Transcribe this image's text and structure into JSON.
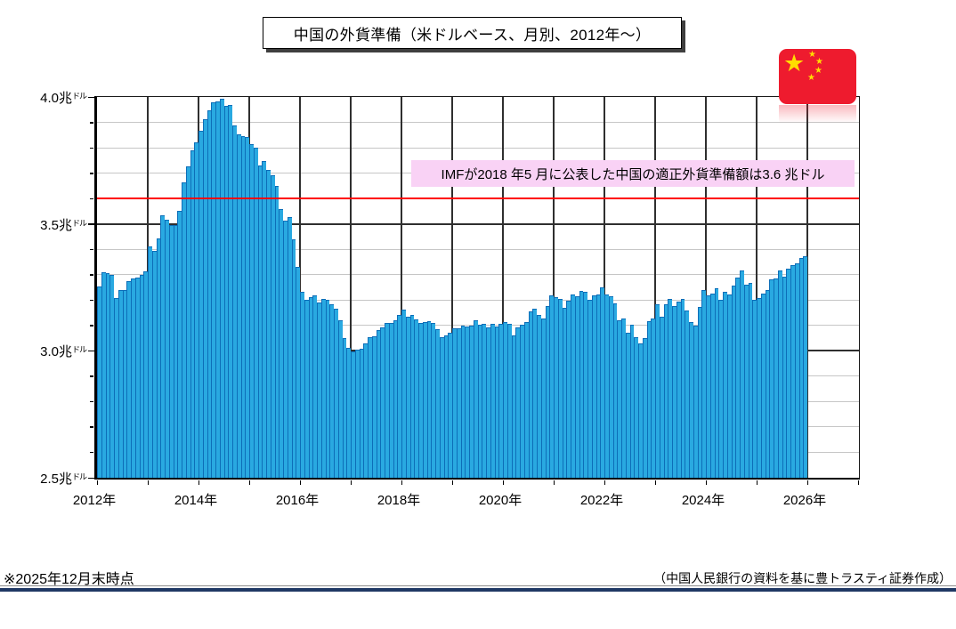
{
  "title_box": {
    "text": "中国の外貨準備（米ドルベース、月別、2012年～）"
  },
  "annotation": {
    "text": "IMFが2018 年5 月に公表した中国の適正外貨準備額は3.6 兆ドル",
    "bg_color": "#F9D2F5"
  },
  "flag": {
    "country": "China",
    "bg_color": "#EE1B2E",
    "star_color": "#FFDE00",
    "big_star": "★",
    "small_star": "★"
  },
  "footer": {
    "note": "※2025年12月末時点",
    "source": "（中国人民銀行の資料を基に豊トラスティ証券作成）",
    "rule_color": "#1F3864"
  },
  "chart_data": {
    "type": "bar",
    "title": "中国の外貨準備（米ドルベース、月別、2012年～）",
    "ylabel": "兆ドル",
    "xlabel": "",
    "bar_color": "#29A9E1",
    "bar_edge_color": "#0D6EB8",
    "grid": {
      "h_minor_step": 0.1,
      "h_major_step": 0.5,
      "v_step_years": 1,
      "minor_color": "#C6C6C6",
      "major_color": "#2F2F2F"
    },
    "y_axis": {
      "min": 2.5,
      "max": 4.0,
      "ticks": [
        {
          "value": 4.0,
          "num": "4.0兆",
          "unit": "ドル"
        },
        {
          "value": 3.5,
          "num": "3.5兆",
          "unit": "ドル"
        },
        {
          "value": 3.0,
          "num": "3.0兆",
          "unit": "ドル"
        },
        {
          "value": 2.5,
          "num": "2.5兆",
          "unit": "ドル"
        }
      ]
    },
    "x_axis": {
      "start_year": 2012,
      "end_year": 2027,
      "labels": [
        {
          "year": 2012,
          "label": "2012年"
        },
        {
          "year": 2014,
          "label": "2014年"
        },
        {
          "year": 2016,
          "label": "2016年"
        },
        {
          "year": 2018,
          "label": "2018年"
        },
        {
          "year": 2020,
          "label": "2020年"
        },
        {
          "year": 2022,
          "label": "2022年"
        },
        {
          "year": 2024,
          "label": "2024年"
        },
        {
          "year": 2026,
          "label": "2026年"
        }
      ]
    },
    "reference_line": {
      "value": 3.6,
      "color": "#FF0000"
    },
    "series": [
      {
        "name": "外貨準備",
        "monthly": [
          {
            "year": 2012,
            "values": [
              3.254,
              3.31,
              3.305,
              3.299,
              3.207,
              3.24,
              3.24,
              3.273,
              3.285,
              3.287,
              3.298,
              3.312
            ]
          },
          {
            "year": 2013,
            "values": [
              3.41,
              3.395,
              3.443,
              3.535,
              3.515,
              3.497,
              3.497,
              3.553,
              3.663,
              3.727,
              3.789,
              3.821
            ]
          },
          {
            "year": 2014,
            "values": [
              3.867,
              3.914,
              3.948,
              3.979,
              3.984,
              3.993,
              3.966,
              3.969,
              3.888,
              3.853,
              3.847,
              3.843
            ]
          },
          {
            "year": 2015,
            "values": [
              3.813,
              3.802,
              3.73,
              3.748,
              3.711,
              3.693,
              3.651,
              3.557,
              3.514,
              3.526,
              3.438,
              3.33
            ]
          },
          {
            "year": 2016,
            "values": [
              3.231,
              3.202,
              3.213,
              3.22,
              3.192,
              3.205,
              3.201,
              3.185,
              3.166,
              3.121,
              3.052,
              3.011
            ]
          },
          {
            "year": 2017,
            "values": [
              2.998,
              3.005,
              3.009,
              3.03,
              3.054,
              3.057,
              3.081,
              3.092,
              3.109,
              3.109,
              3.119,
              3.14
            ]
          },
          {
            "year": 2018,
            "values": [
              3.161,
              3.134,
              3.143,
              3.125,
              3.111,
              3.112,
              3.118,
              3.11,
              3.087,
              3.053,
              3.062,
              3.073
            ]
          },
          {
            "year": 2019,
            "values": [
              3.088,
              3.09,
              3.099,
              3.095,
              3.101,
              3.119,
              3.104,
              3.107,
              3.092,
              3.105,
              3.096,
              3.108
            ]
          },
          {
            "year": 2020,
            "values": [
              3.115,
              3.107,
              3.061,
              3.091,
              3.102,
              3.112,
              3.154,
              3.165,
              3.143,
              3.128,
              3.178,
              3.217
            ]
          },
          {
            "year": 2021,
            "values": [
              3.211,
              3.205,
              3.17,
              3.198,
              3.222,
              3.214,
              3.236,
              3.232,
              3.201,
              3.218,
              3.222,
              3.25
            ]
          },
          {
            "year": 2022,
            "values": [
              3.222,
              3.214,
              3.188,
              3.12,
              3.128,
              3.071,
              3.104,
              3.055,
              3.029,
              3.052,
              3.117,
              3.128
            ]
          },
          {
            "year": 2023,
            "values": [
              3.184,
              3.133,
              3.184,
              3.205,
              3.177,
              3.193,
              3.204,
              3.16,
              3.115,
              3.101,
              3.172,
              3.238
            ]
          },
          {
            "year": 2024,
            "values": [
              3.219,
              3.226,
              3.246,
              3.201,
              3.232,
              3.222,
              3.256,
              3.288,
              3.316,
              3.261,
              3.266,
              3.202
            ]
          },
          {
            "year": 2025,
            "values": [
              3.209,
              3.227,
              3.241,
              3.282,
              3.285,
              3.317,
              3.292,
              3.322,
              3.339,
              3.343,
              3.366,
              3.372
            ]
          }
        ]
      }
    ]
  }
}
